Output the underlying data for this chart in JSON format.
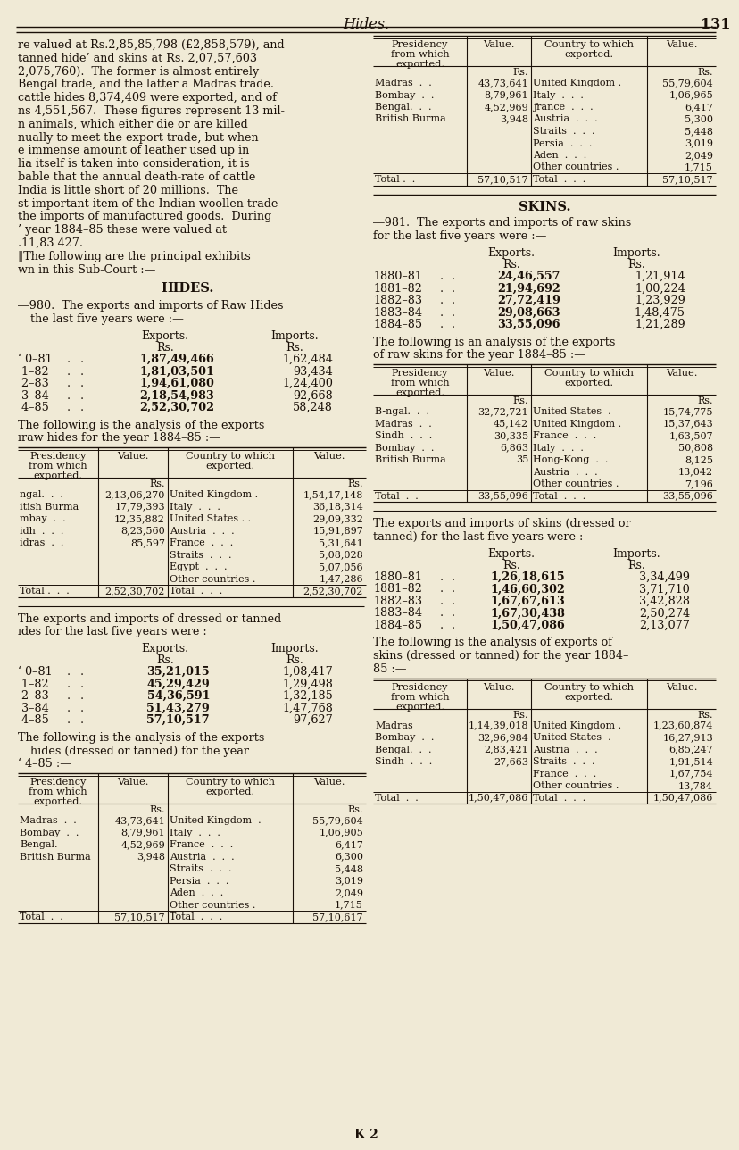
{
  "bg_color": "#f0ead6",
  "page_title": "Hides.",
  "page_number": "131",
  "footer": "K 2"
}
